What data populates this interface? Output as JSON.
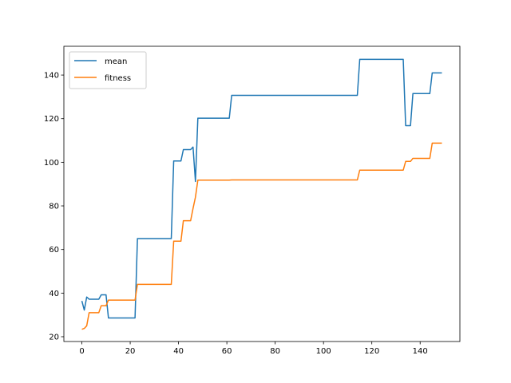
{
  "chart_data": {
    "type": "line",
    "title": "",
    "xlabel": "",
    "ylabel": "",
    "xlim": [
      -7.45,
      156.45
    ],
    "ylim": [
      17.8,
      153.2
    ],
    "xticks": [
      0,
      20,
      40,
      60,
      80,
      100,
      120,
      140
    ],
    "yticks": [
      20,
      40,
      60,
      80,
      100,
      120,
      140
    ],
    "grid": false,
    "legend": "top-left",
    "series": [
      {
        "name": "mean",
        "color": "#1f77b4",
        "points": [
          [
            0,
            36.4
          ],
          [
            1,
            32.2
          ],
          [
            2,
            38.2
          ],
          [
            3,
            37.2
          ],
          [
            4,
            37.2
          ],
          [
            5,
            37.2
          ],
          [
            6,
            37.2
          ],
          [
            7,
            37.2
          ],
          [
            8,
            39.2
          ],
          [
            9,
            39.2
          ],
          [
            10,
            39.2
          ],
          [
            11,
            28.6
          ],
          [
            12,
            28.6
          ],
          [
            22,
            28.6
          ],
          [
            23,
            65.0
          ],
          [
            37,
            65.0
          ],
          [
            38,
            100.6
          ],
          [
            40,
            100.6
          ],
          [
            41,
            100.6
          ],
          [
            42,
            105.8
          ],
          [
            44,
            105.8
          ],
          [
            45,
            105.8
          ],
          [
            46,
            107.0
          ],
          [
            47,
            91.2
          ],
          [
            48,
            120.2
          ],
          [
            61,
            120.2
          ],
          [
            62,
            130.7
          ],
          [
            114,
            130.7
          ],
          [
            115,
            147.2
          ],
          [
            133,
            147.2
          ],
          [
            134,
            116.8
          ],
          [
            136,
            116.8
          ],
          [
            137,
            131.5
          ],
          [
            144,
            131.5
          ],
          [
            145,
            141.0
          ],
          [
            149,
            141.0
          ]
        ]
      },
      {
        "name": "fitness",
        "color": "#ff7f0e",
        "points": [
          [
            0,
            23.4
          ],
          [
            1,
            23.8
          ],
          [
            2,
            25.0
          ],
          [
            3,
            31.0
          ],
          [
            7,
            31.0
          ],
          [
            8,
            34.2
          ],
          [
            10,
            34.2
          ],
          [
            11,
            36.8
          ],
          [
            22,
            36.8
          ],
          [
            23,
            44.0
          ],
          [
            37,
            44.0
          ],
          [
            38,
            63.8
          ],
          [
            41,
            63.8
          ],
          [
            42,
            73.2
          ],
          [
            45,
            73.2
          ],
          [
            46,
            78.8
          ],
          [
            47,
            84.0
          ],
          [
            48,
            91.8
          ],
          [
            61,
            91.8
          ],
          [
            62,
            91.9
          ],
          [
            114,
            91.9
          ],
          [
            115,
            96.4
          ],
          [
            133,
            96.4
          ],
          [
            134,
            100.4
          ],
          [
            136,
            100.4
          ],
          [
            137,
            101.8
          ],
          [
            139,
            101.8
          ],
          [
            140,
            101.8
          ],
          [
            144,
            101.8
          ],
          [
            145,
            108.8
          ],
          [
            149,
            108.8
          ]
        ]
      }
    ]
  }
}
